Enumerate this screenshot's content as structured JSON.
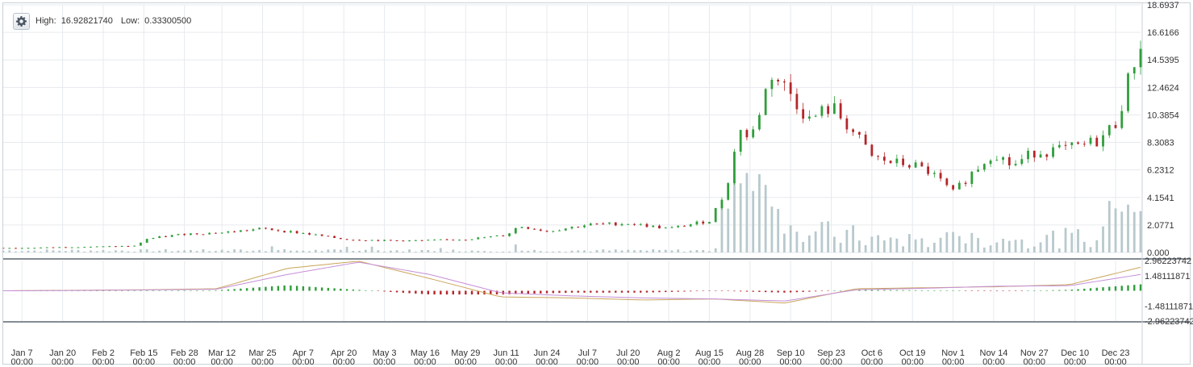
{
  "header": {
    "settings_icon": "gear-icon",
    "high_label": "High:",
    "high_value": "16.92821740",
    "low_label": "Low:",
    "low_value": "0.33300500"
  },
  "colors": {
    "up": "#2f9e3b",
    "down": "#b3262a",
    "volume": "#b8c9cd",
    "grid": "#e6eaee",
    "macd_line": "#c9a55a",
    "signal_line": "#c58fd8",
    "hist_up": "#2f9e3b",
    "hist_down": "#b3262a"
  },
  "chart_data": [
    {
      "type": "candlestick",
      "title": "",
      "y_ticks": [
        "18.6937",
        "16.6166",
        "14.5395",
        "12.4624",
        "10.3854",
        "8.3083",
        "6.2312",
        "4.1541",
        "2.0771",
        "0.000"
      ],
      "ylim": [
        0,
        18.6937
      ],
      "x_ticks": [
        {
          "label": "Jan 7",
          "time": "00:00"
        },
        {
          "label": "Jan 20",
          "time": "00:00"
        },
        {
          "label": "Feb 2",
          "time": "00:00"
        },
        {
          "label": "Feb 15",
          "time": "00:00"
        },
        {
          "label": "Feb 28",
          "time": "00:00"
        },
        {
          "label": "Mar 12",
          "time": "00:00"
        },
        {
          "label": "Mar 25",
          "time": "00:00"
        },
        {
          "label": "Apr 7",
          "time": "00:00"
        },
        {
          "label": "Apr 20",
          "time": "00:00"
        },
        {
          "label": "May 3",
          "time": "00:00"
        },
        {
          "label": "May 16",
          "time": "00:00"
        },
        {
          "label": "May 29",
          "time": "00:00"
        },
        {
          "label": "Jun 11",
          "time": "00:00"
        },
        {
          "label": "Jun 24",
          "time": "00:00"
        },
        {
          "label": "Jul 7",
          "time": "00:00"
        },
        {
          "label": "Jul 20",
          "time": "00:00"
        },
        {
          "label": "Aug 2",
          "time": "00:00"
        },
        {
          "label": "Aug 15",
          "time": "00:00"
        },
        {
          "label": "Aug 28",
          "time": "00:00"
        },
        {
          "label": "Sep 10",
          "time": "00:00"
        },
        {
          "label": "Sep 23",
          "time": "00:00"
        },
        {
          "label": "Oct 6",
          "time": "00:00"
        },
        {
          "label": "Oct 19",
          "time": "00:00"
        },
        {
          "label": "Nov 1",
          "time": "00:00"
        },
        {
          "label": "Nov 14",
          "time": "00:00"
        },
        {
          "label": "Nov 27",
          "time": "00:00"
        },
        {
          "label": "Dec 10",
          "time": "00:00"
        },
        {
          "label": "Dec 23",
          "time": "00:00"
        }
      ],
      "price_path": [
        [
          "Jan 1",
          0.35
        ],
        [
          "Jan 7",
          0.34
        ],
        [
          "Jan 20",
          0.4
        ],
        [
          "Feb 2",
          0.45
        ],
        [
          "Feb 13",
          0.5
        ],
        [
          "Feb 15",
          1.0
        ],
        [
          "Feb 28",
          1.4
        ],
        [
          "Mar 12",
          1.5
        ],
        [
          "Mar 25",
          1.8
        ],
        [
          "Apr 7",
          1.45
        ],
        [
          "Apr 20",
          1.0
        ],
        [
          "May 3",
          0.9
        ],
        [
          "May 16",
          0.9
        ],
        [
          "May 29",
          1.0
        ],
        [
          "Jun 11",
          1.3
        ],
        [
          "Jun 15",
          2.0
        ],
        [
          "Jun 24",
          1.6
        ],
        [
          "Jul 7",
          2.1
        ],
        [
          "Jul 20",
          2.2
        ],
        [
          "Aug 2",
          1.8
        ],
        [
          "Aug 15",
          2.4
        ],
        [
          "Aug 20",
          4.5
        ],
        [
          "Aug 25",
          9.5
        ],
        [
          "Aug 28",
          8.3
        ],
        [
          "Sep 1",
          11.5
        ],
        [
          "Sep 4",
          13.5
        ],
        [
          "Sep 10",
          12.0
        ],
        [
          "Sep 16",
          10.0
        ],
        [
          "Sep 23",
          11.0
        ],
        [
          "Sep 28",
          9.7
        ],
        [
          "Oct 6",
          7.2
        ],
        [
          "Oct 12",
          6.8
        ],
        [
          "Oct 19",
          6.6
        ],
        [
          "Oct 25",
          6.0
        ],
        [
          "Nov 1",
          4.5
        ],
        [
          "Nov 7",
          6.0
        ],
        [
          "Nov 14",
          7.6
        ],
        [
          "Nov 20",
          6.5
        ],
        [
          "Nov 27",
          7.6
        ],
        [
          "Dec 3",
          7.7
        ],
        [
          "Dec 10",
          7.9
        ],
        [
          "Dec 18",
          8.5
        ],
        [
          "Dec 23",
          9.8
        ],
        [
          "Dec 26",
          12.0
        ],
        [
          "Dec 29",
          14.5
        ],
        [
          "Dec 31",
          15.8
        ]
      ],
      "volume_spikes": [
        [
          "Aug 20",
          4.3
        ],
        [
          "Aug 25",
          5.5
        ],
        [
          "Aug 28",
          6.2
        ],
        [
          "Sep 1",
          7.2
        ],
        [
          "Sep 4",
          4.0
        ],
        [
          "Sep 10",
          2.0
        ],
        [
          "Oct 10",
          1.0
        ],
        [
          "Nov 1",
          1.6
        ],
        [
          "Nov 20",
          1.0
        ],
        [
          "Dec 23",
          4.3
        ],
        [
          "Dec 29",
          4.2
        ]
      ]
    },
    {
      "type": "line",
      "title": "",
      "y_ticks": [
        "2.96223742",
        "1.48111871",
        "-1.48111871",
        "-2.96223742"
      ],
      "ylim": [
        -2.96223742,
        2.96223742
      ],
      "series": [
        {
          "values": [
            0,
            0.05,
            0.1,
            0.2,
            2.2,
            2.9,
            1.2,
            -0.6,
            -0.7,
            -0.9,
            -0.8,
            -1.2,
            0.2,
            0.3,
            0.4,
            0.6,
            2.3
          ]
        },
        {
          "values": [
            0,
            0.03,
            0.08,
            0.15,
            1.6,
            2.8,
            1.6,
            -0.2,
            -0.5,
            -0.7,
            -0.8,
            -1.0,
            0.1,
            0.25,
            0.45,
            0.5,
            1.6
          ]
        }
      ]
    }
  ]
}
